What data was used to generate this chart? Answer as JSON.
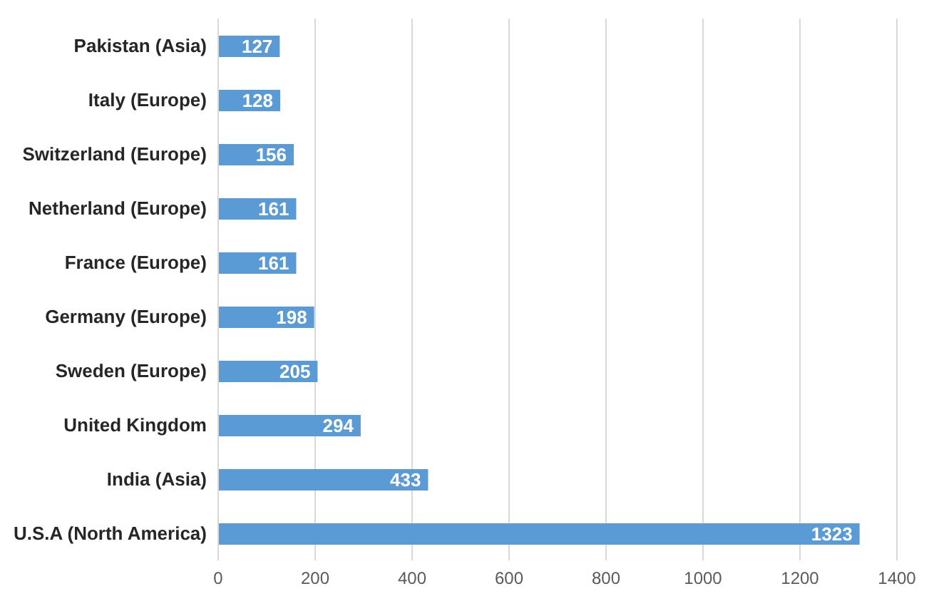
{
  "chart_data": {
    "type": "bar",
    "orientation": "horizontal",
    "categories": [
      "Pakistan (Asia)",
      "Italy (Europe)",
      "Switzerland (Europe)",
      "Netherland (Europe)",
      "France (Europe)",
      "Germany (Europe)",
      "Sweden (Europe)",
      "United Kingdom",
      "India (Asia)",
      "U.S.A (North America)"
    ],
    "values": [
      127,
      128,
      156,
      161,
      161,
      198,
      205,
      294,
      433,
      1323
    ],
    "color": "#5b9bd5",
    "xlim": [
      0,
      1400
    ],
    "xticks": [
      0,
      200,
      400,
      600,
      800,
      1000,
      1200,
      1400
    ],
    "grid": "x",
    "data_labels": true
  }
}
